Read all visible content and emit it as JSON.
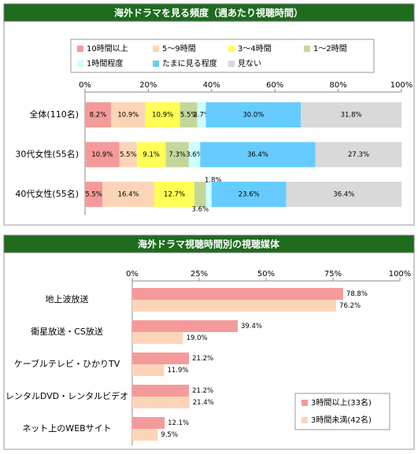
{
  "chart_data": [
    {
      "type": "bar",
      "stacked": true,
      "orientation": "horizontal",
      "title": "海外ドラマを見る頻度（週あたり視聴時間）",
      "categories": [
        "全体(110名)",
        "30代女性(55名)",
        "40代女性(55名)"
      ],
      "series": [
        {
          "name": "10時間以上",
          "color": "#f59a9a",
          "values": [
            8.2,
            10.9,
            5.5
          ],
          "value_labels": [
            "8.2%",
            "10.9%",
            "5.5%"
          ]
        },
        {
          "name": "5～9時間",
          "color": "#fcd5b8",
          "values": [
            10.9,
            5.5,
            16.4
          ],
          "value_labels": [
            "10.9%",
            "5.5%",
            "16.4%"
          ]
        },
        {
          "name": "3～4時間",
          "color": "#ffff55",
          "values": [
            10.9,
            9.1,
            12.7
          ],
          "value_labels": [
            "10.9%",
            "9.1%",
            "12.7%"
          ]
        },
        {
          "name": "1～2時間",
          "color": "#c4d79b",
          "values": [
            5.5,
            7.3,
            3.6
          ],
          "value_labels": [
            "5.5%",
            "7.3%",
            "3.6%"
          ]
        },
        {
          "name": "1時間程度",
          "color": "#ccffff",
          "values": [
            2.7,
            3.6,
            1.8
          ],
          "value_labels": [
            "2.7%",
            "3.6%",
            "1.8%"
          ]
        },
        {
          "name": "たまに見る程度",
          "color": "#66ccff",
          "values": [
            30,
            36.4,
            23.6
          ],
          "value_labels": [
            "30.0%",
            "36.4%",
            "23.6%"
          ]
        },
        {
          "name": "見ない",
          "color": "#d9d9d9",
          "values": [
            31.8,
            27.3,
            36.4
          ],
          "value_labels": [
            "31.8%",
            "27.3%",
            "36.4%"
          ]
        }
      ],
      "xlim": [
        0,
        100
      ],
      "xticks": [
        {
          "value": 0,
          "label": "0%"
        },
        {
          "value": 20,
          "label": "20%"
        },
        {
          "value": 40,
          "label": "40%"
        },
        {
          "value": 60,
          "label": "60%"
        },
        {
          "value": 80,
          "label": "80%"
        },
        {
          "value": 100,
          "label": "100%"
        }
      ],
      "legend": "top",
      "grid": false
    },
    {
      "type": "bar",
      "stacked": false,
      "orientation": "horizontal",
      "title": "海外ドラマ視聴時間別の視聴媒体",
      "categories": [
        "地上波放送",
        "衛星放送・CS放送",
        "ケーブルテレビ・ひかりTV",
        "レンタルDVD・レンタルビデオ",
        "ネット上のWEBサイト"
      ],
      "series": [
        {
          "name": "3時間以上(33名)",
          "color": "#f59a9a",
          "values": [
            78.8,
            39.4,
            21.2,
            21.2,
            12.1
          ],
          "value_labels": [
            "78.8%",
            "39.4%",
            "21.2%",
            "21.2%",
            "12.1%"
          ]
        },
        {
          "name": "3時間未満(42名)",
          "color": "#fcd5b8",
          "values": [
            76.2,
            19,
            11.9,
            21.4,
            9.5
          ],
          "value_labels": [
            "76.2%",
            "19.0%",
            "11.9%",
            "21.4%",
            "9.5%"
          ]
        }
      ],
      "xlim": [
        0,
        100
      ],
      "xticks": [
        {
          "value": 0,
          "label": "0%"
        },
        {
          "value": 25,
          "label": "25%"
        },
        {
          "value": 50,
          "label": "50%"
        },
        {
          "value": 75,
          "label": "75%"
        },
        {
          "value": 100,
          "label": "100%"
        }
      ],
      "legend": "lower right",
      "grid": false
    }
  ]
}
